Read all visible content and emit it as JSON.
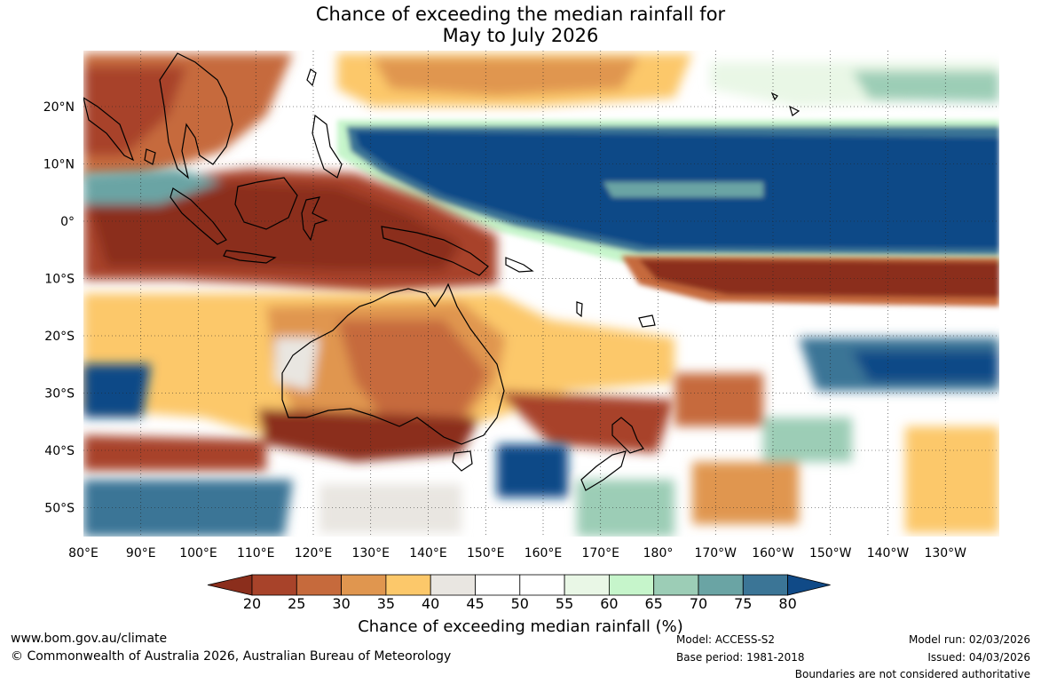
{
  "title": {
    "line1": "Chance of exceeding the median rainfall for",
    "line2": "May to July 2026"
  },
  "map": {
    "lon_labels": [
      "80°E",
      "90°E",
      "100°E",
      "110°E",
      "120°E",
      "130°E",
      "140°E",
      "150°E",
      "160°E",
      "170°E",
      "180°",
      "170°W",
      "160°W",
      "150°W",
      "140°W",
      "130°W"
    ],
    "lat_labels": [
      "20°N",
      "10°N",
      "0°",
      "10°S",
      "20°S",
      "30°S",
      "40°S",
      "50°S"
    ]
  },
  "colorbar": {
    "ticks": [
      "20",
      "25",
      "30",
      "35",
      "40",
      "45",
      "50",
      "55",
      "60",
      "65",
      "70",
      "75",
      "80"
    ],
    "colors": [
      "#8b2e1c",
      "#a8432a",
      "#c66a3c",
      "#e0964f",
      "#fcc86a",
      "#e9e6e1",
      "#ffffff",
      "#ffffff",
      "#e9f7e6",
      "#c6f5cb",
      "#9ccdb6",
      "#6aa4a4",
      "#3b7596",
      "#104a87"
    ],
    "label": "Chance of exceeding median rainfall (%)"
  },
  "footer": {
    "url": "www.bom.gov.au/climate",
    "copyright": "© Commonwealth of Australia 2026, Australian Bureau of Meteorology",
    "model": "Model: ACCESS-S2",
    "base_period": "Base period: 1981-2018",
    "model_run": "Model run: 02/03/2026",
    "issued": "Issued: 04/03/2026",
    "disclaimer": "Boundaries are not considered authoritative"
  }
}
